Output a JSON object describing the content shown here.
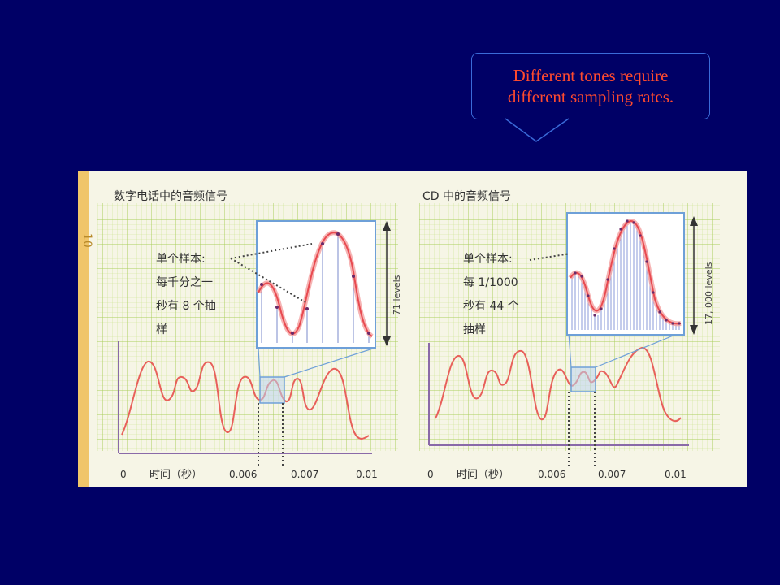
{
  "slide": {
    "background_color": "#000066",
    "callout": {
      "line1": "Different tones require",
      "line2": "different sampling rates.",
      "text_color": "#ff4a2e",
      "border_color": "#3a6ad8"
    }
  },
  "figure": {
    "page_margin_text": "10",
    "left_panel": {
      "title": "数字电话中的音频信号",
      "annotation": [
        "单个样本:",
        "每千分之一",
        "秒有 8 个抽",
        "样"
      ],
      "levels_label": "71  levels",
      "axis_labels": [
        "0",
        "时间（秒）",
        "0.006",
        "0.007",
        "0.01"
      ]
    },
    "right_panel": {
      "title": "CD 中的音频信号",
      "annotation": [
        "单个样本:",
        "每 1/1000",
        "秒有 44 个",
        "抽样"
      ],
      "levels_label": "17, 000  levels",
      "axis_labels": [
        "0",
        "时间（秒）",
        "0.006",
        "0.007",
        "0.01"
      ]
    },
    "colors": {
      "grid": "#b4d66a",
      "waveform": "#e8605a",
      "inset_border": "#6ea0d8",
      "axis": "#8a6aa8"
    }
  }
}
